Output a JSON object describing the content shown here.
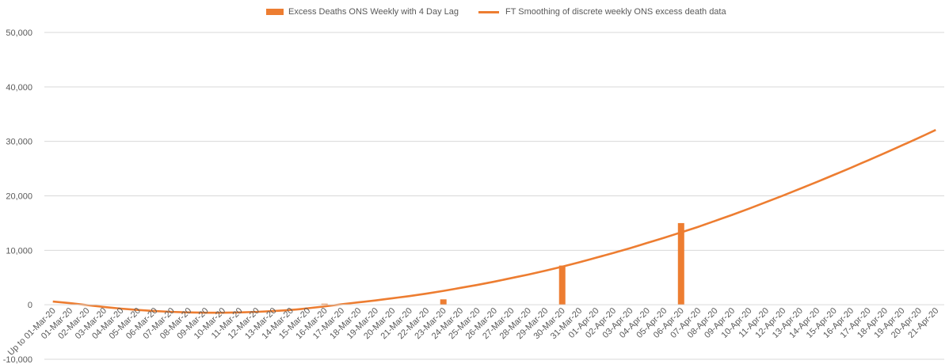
{
  "chart_data": {
    "type": "bar",
    "categories": [
      "Up to 01-Mar-20",
      "01-Mar-20",
      "02-Mar-20",
      "03-Mar-20",
      "04-Mar-20",
      "05-Mar-20",
      "06-Mar-20",
      "07-Mar-20",
      "08-Mar-20",
      "09-Mar-20",
      "10-Mar-20",
      "11-Mar-20",
      "12-Mar-20",
      "13-Mar-20",
      "14-Mar-20",
      "15-Mar-20",
      "16-Mar-20",
      "17-Mar-20",
      "18-Mar-20",
      "19-Mar-20",
      "20-Mar-20",
      "21-Mar-20",
      "22-Mar-20",
      "23-Mar-20",
      "24-Mar-20",
      "25-Mar-20",
      "26-Mar-20",
      "27-Mar-20",
      "28-Mar-20",
      "29-Mar-20",
      "30-Mar-20",
      "31-Mar-20",
      "01-Apr-20",
      "02-Apr-20",
      "03-Apr-20",
      "04-Apr-20",
      "05-Apr-20",
      "06-Apr-20",
      "07-Apr-20",
      "08-Apr-20",
      "09-Apr-20",
      "10-Apr-20",
      "11-Apr-20",
      "12-Apr-20",
      "13-Apr-20",
      "14-Apr-20",
      "15-Apr-20",
      "16-Apr-20",
      "17-Apr-20",
      "18-Apr-20",
      "19-Apr-20",
      "20-Apr-20",
      "21-Apr-20"
    ],
    "series": [
      {
        "name": "Excess Deaths ONS Weekly with 4 Day Lag",
        "kind": "bar",
        "color": "#ED7D31",
        "values": [
          0,
          0,
          0,
          0,
          0,
          0,
          0,
          0,
          0,
          0,
          0,
          0,
          0,
          0,
          0,
          0,
          200,
          0,
          0,
          0,
          0,
          0,
          0,
          1000,
          0,
          0,
          0,
          0,
          0,
          0,
          7200,
          0,
          0,
          0,
          0,
          0,
          0,
          15000,
          0,
          0,
          0,
          0,
          0,
          0,
          0,
          0,
          0,
          0,
          0,
          0,
          0,
          0,
          0
        ]
      },
      {
        "name": "FT Smoothing of discrete weekly ONS excess death data",
        "kind": "line",
        "color": "#ED7D31",
        "values": [
          600,
          300,
          -50,
          -400,
          -700,
          -950,
          -1150,
          -1300,
          -1400,
          -1450,
          -1450,
          -1400,
          -1300,
          -1150,
          -950,
          -650,
          -300,
          100,
          450,
          800,
          1200,
          1600,
          2050,
          2550,
          3100,
          3650,
          4250,
          4900,
          5550,
          6250,
          7000,
          7800,
          8650,
          9500,
          10400,
          11350,
          12300,
          13300,
          14300,
          15400,
          16500,
          17650,
          18850,
          20050,
          21300,
          22550,
          23850,
          25150,
          26500,
          27850,
          29250,
          30650,
          32100
        ]
      }
    ],
    "y_ticks": [
      "-10,000",
      "0",
      "10,000",
      "20,000",
      "30,000",
      "40,000",
      "50,000"
    ],
    "ylim": [
      -10000,
      50000
    ],
    "grid": true,
    "legend_position": "top"
  }
}
